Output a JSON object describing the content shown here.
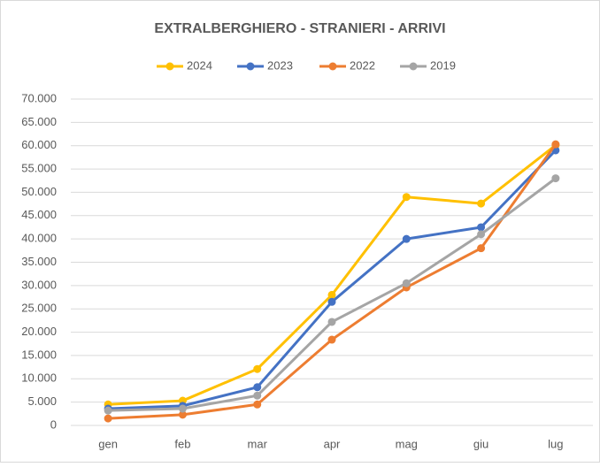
{
  "chart_data": {
    "type": "line",
    "title": "EXTRALBERGHIERO - STRANIERI - ARRIVI",
    "categories": [
      "gen",
      "feb",
      "mar",
      "apr",
      "mag",
      "giu",
      "lug"
    ],
    "series": [
      {
        "name": "2024",
        "color": "#FFC000",
        "values": [
          4500,
          5300,
          12100,
          28000,
          49000,
          47600,
          60100
        ]
      },
      {
        "name": "2023",
        "color": "#4472C4",
        "values": [
          3600,
          4200,
          8200,
          26500,
          40000,
          42500,
          59000
        ]
      },
      {
        "name": "2022",
        "color": "#ED7D31",
        "values": [
          1500,
          2300,
          4500,
          18400,
          29600,
          38000,
          60300
        ]
      },
      {
        "name": "2019",
        "color": "#A5A5A5",
        "values": [
          3200,
          3600,
          6400,
          22200,
          30500,
          41000,
          53000
        ]
      }
    ],
    "ylim": [
      0,
      70000
    ],
    "yticks": [
      0,
      {
        "value": 5000,
        "label": "5.000"
      },
      {
        "value": 10000,
        "label": "10.000"
      },
      {
        "value": 15000,
        "label": "15.000"
      },
      {
        "value": 20000,
        "label": "20.000"
      },
      {
        "value": 25000,
        "label": "25.000"
      },
      {
        "value": 30000,
        "label": "30.000"
      },
      {
        "value": 35000,
        "label": "35.000"
      },
      {
        "value": 40000,
        "label": "40.000"
      },
      {
        "value": 45000,
        "label": "45.000"
      },
      {
        "value": 50000,
        "label": "50.000"
      },
      {
        "value": 55000,
        "label": "55.000"
      },
      {
        "value": 60000,
        "label": "60.000"
      },
      {
        "value": 65000,
        "label": "65.000"
      },
      {
        "value": {
          "value": 70000,
          "label": "70.000"
        },
        "label": "70.000"
      }
    ],
    "grid": true,
    "legend": "top"
  }
}
